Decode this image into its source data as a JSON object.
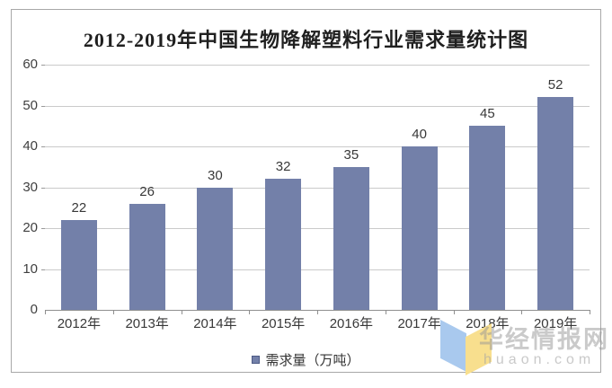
{
  "chart_data": {
    "type": "bar",
    "title": "2012-2019年中国生物降解塑料行业需求量统计图",
    "categories": [
      "2012年",
      "2013年",
      "2014年",
      "2015年",
      "2016年",
      "2017年",
      "2018年",
      "2019年"
    ],
    "values": [
      22,
      26,
      30,
      32,
      35,
      40,
      45,
      52
    ],
    "series_name": "需求量（万吨）",
    "legend_label": "需求量（万吨）",
    "legend_position": "bottom",
    "xlabel": "",
    "ylabel": "",
    "ylim": [
      0,
      60
    ],
    "yticks": [
      0,
      10,
      20,
      30,
      40,
      50,
      60
    ],
    "grid": "horizontal",
    "bar_color": "#7380a9",
    "value_labels_shown": true
  },
  "watermark": {
    "name": "华经情报网",
    "domain": "huaon.com",
    "logo_blue": "#a9c9ee",
    "logo_yellow": "#f8df8e"
  },
  "colors": {
    "bar": "#7380a9",
    "gridline": "#cacaca",
    "axis": "#8f8f8f",
    "text": "#383838",
    "frame_border": "#a8a8a8"
  }
}
